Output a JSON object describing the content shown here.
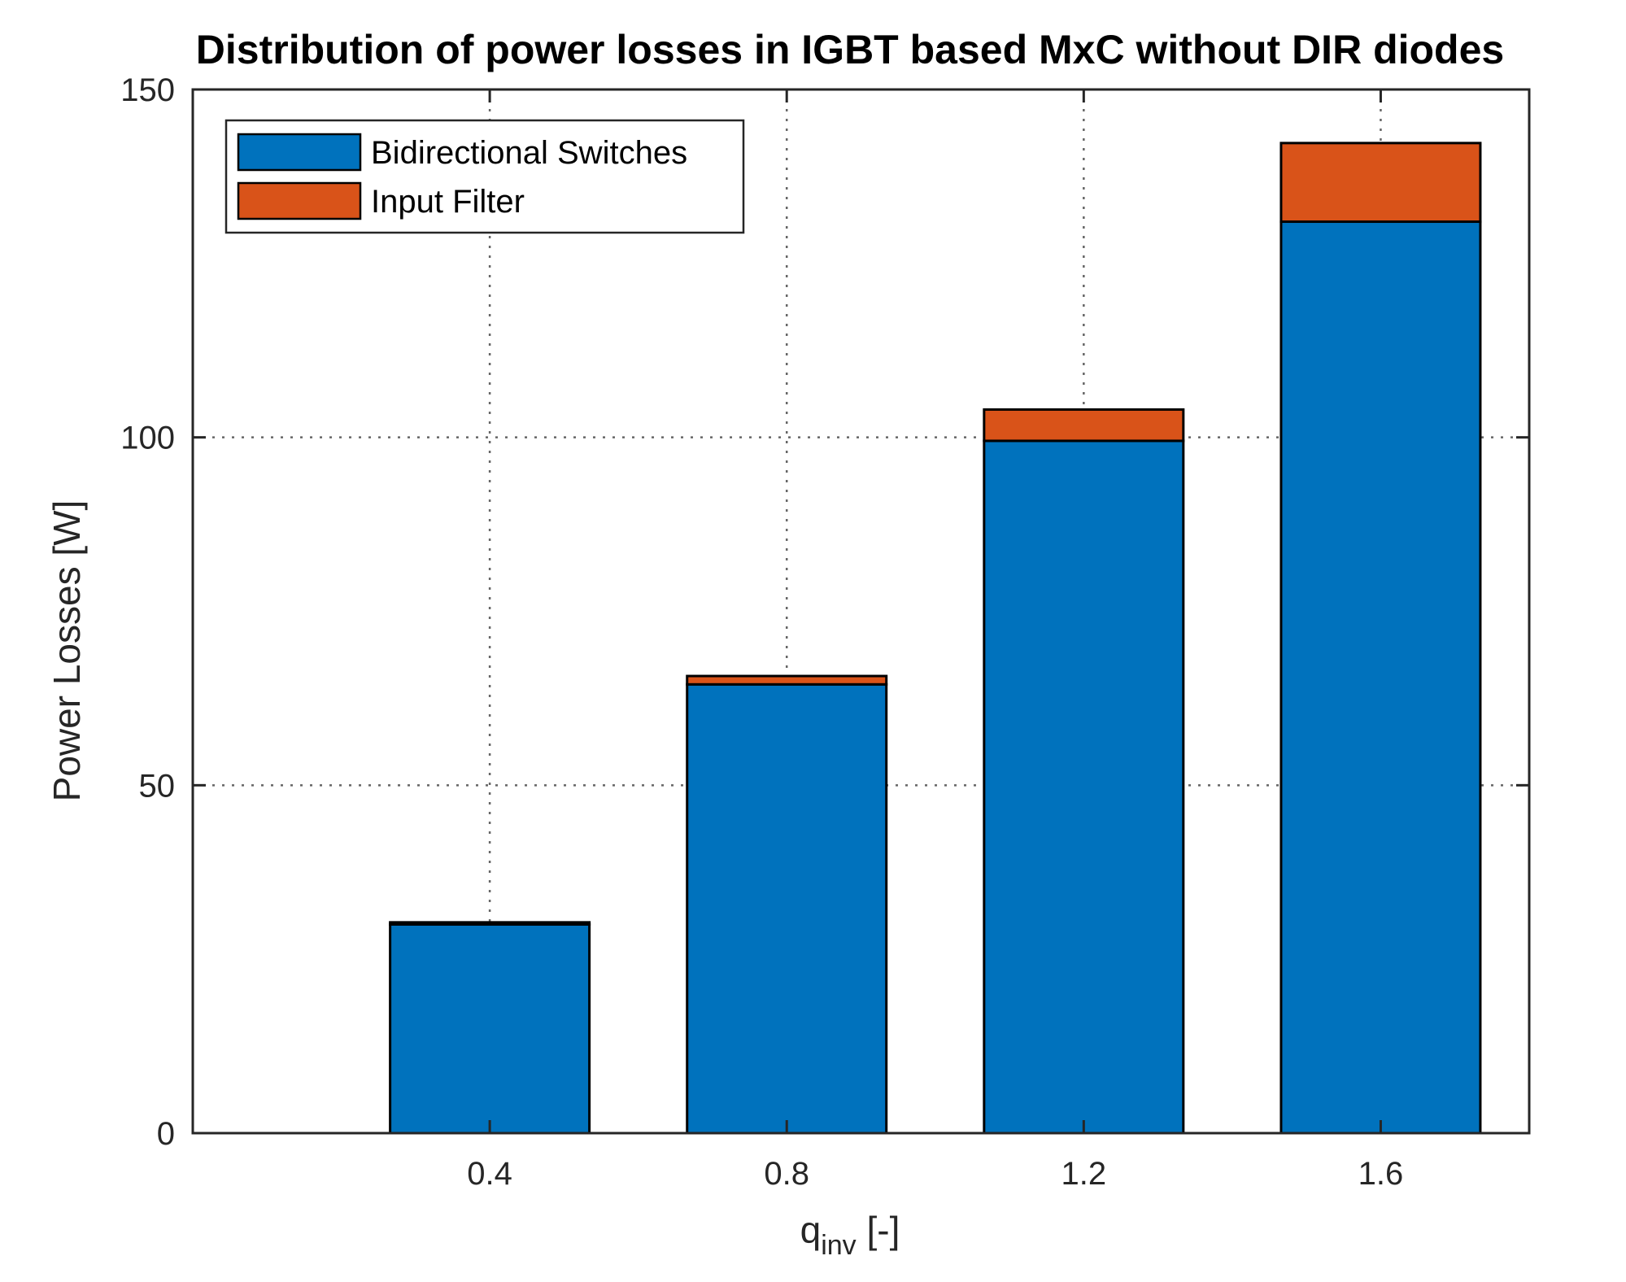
{
  "chart_data": {
    "type": "bar",
    "stacked": true,
    "title": "Distribution of power losses in IGBT based MxC without DIR diodes",
    "xlabel": {
      "main": "q",
      "sub": "inv",
      "unit": " [-]"
    },
    "ylabel": "Power Losses [W]",
    "categories": [
      "0.4",
      "0.8",
      "1.2",
      "1.6"
    ],
    "series": [
      {
        "name": "Bidirectional Switches",
        "color": "#0072BD",
        "values": [
          30,
          64.5,
          99.5,
          131
        ]
      },
      {
        "name": "Input Filter",
        "color": "#D95319",
        "values": [
          0.3,
          1.2,
          4.5,
          11.3
        ]
      }
    ],
    "ylim": [
      0,
      150
    ],
    "xlim": [
      0,
      1.8
    ],
    "x_positions": [
      0.4,
      0.8,
      1.2,
      1.6
    ],
    "yticks": [
      0,
      50,
      100,
      150
    ],
    "grid": true,
    "legend_position": "top-left"
  }
}
